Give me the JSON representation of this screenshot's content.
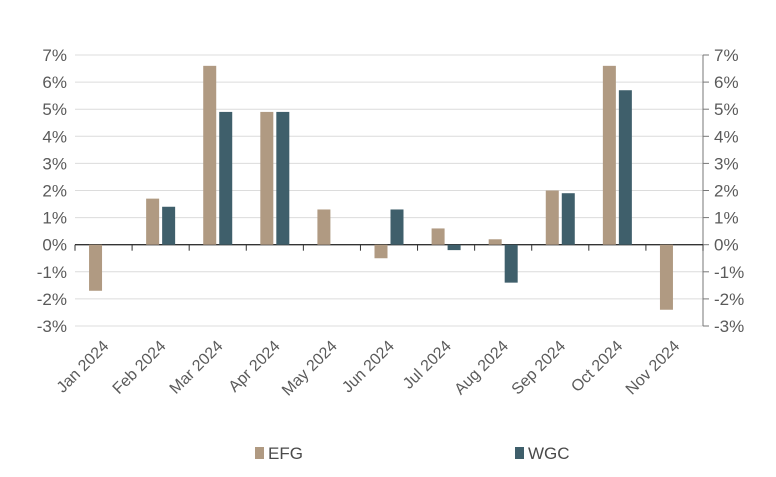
{
  "chart_data": {
    "type": "bar",
    "categories": [
      "Jan 2024",
      "Feb 2024",
      "Mar 2024",
      "Apr 2024",
      "May 2024",
      "Jun 2024",
      "Jul 2024",
      "Aug 2024",
      "Sep 2024",
      "Oct 2024",
      "Nov 2024"
    ],
    "series": [
      {
        "name": "EFG",
        "color": "#b09a82",
        "values": [
          -1.7,
          1.7,
          6.6,
          4.9,
          1.3,
          -0.5,
          0.6,
          0.2,
          2.0,
          6.6,
          -2.4
        ]
      },
      {
        "name": "WGC",
        "color": "#3f5f6b",
        "values": [
          0.0,
          1.4,
          4.9,
          4.9,
          0.0,
          1.3,
          -0.2,
          -1.4,
          1.9,
          5.7,
          0.0
        ]
      }
    ],
    "ylim": [
      -3,
      7
    ],
    "yticks": [
      7,
      6,
      5,
      4,
      3,
      2,
      1,
      0,
      -1,
      -2,
      -3
    ],
    "ytick_labels": [
      "7%",
      "6%",
      "5%",
      "4%",
      "3%",
      "2%",
      "1%",
      "0%",
      "-1%",
      "-2%",
      "-3%"
    ],
    "secondary_axis": true,
    "grid": true,
    "legend_position": "bottom",
    "title": "",
    "xlabel": "",
    "ylabel": ""
  }
}
